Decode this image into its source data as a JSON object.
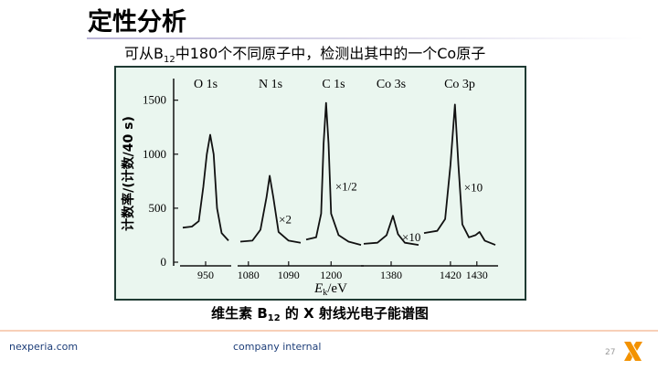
{
  "header": {
    "title": "定性分析",
    "subtitle": [
      "可从B",
      "12",
      "中180个不同原子中，检测出其中的一个Co原子"
    ]
  },
  "figure": {
    "caption": [
      "维生素 B",
      "12",
      " 的 X 射线光电子能谱图"
    ],
    "y_label": "计数率/(计数/40 s)",
    "x_label": [
      "E",
      "k",
      "/eV"
    ]
  },
  "chart_data": [
    {
      "type": "line",
      "title": "O 1s",
      "x": [
        940,
        944,
        947,
        949,
        950.5,
        952,
        953.5,
        955,
        957,
        960
      ],
      "values": [
        320,
        330,
        380,
        700,
        1000,
        1180,
        1000,
        500,
        270,
        200
      ],
      "xlim": [
        940,
        960
      ],
      "xticks": [
        950
      ],
      "ylim": [
        0,
        1700
      ],
      "yticks": [
        0,
        500,
        1000,
        1500
      ],
      "color": "#111111"
    },
    {
      "type": "line",
      "title": "N 1s",
      "annotation": "×2",
      "x": [
        1078,
        1081,
        1083,
        1084.5,
        1085.3,
        1086.2,
        1087.5,
        1090,
        1093
      ],
      "values": [
        190,
        200,
        300,
        600,
        800,
        600,
        280,
        200,
        180
      ],
      "xlim": [
        1078,
        1093
      ],
      "xticks": [
        1080,
        1090
      ],
      "ylim": [
        0,
        1700
      ],
      "color": "#111111"
    },
    {
      "type": "line",
      "title": "C 1s",
      "annotation": "×1/2",
      "x": [
        1190,
        1194,
        1196,
        1197,
        1198,
        1199,
        1200,
        1203,
        1207,
        1212
      ],
      "values": [
        210,
        230,
        450,
        1100,
        1475,
        1100,
        450,
        250,
        190,
        160
      ],
      "xlim": [
        1190,
        1212
      ],
      "xticks": [
        1200
      ],
      "ylim": [
        0,
        1700
      ],
      "color": "#111111"
    },
    {
      "type": "line",
      "title": "Co 3s",
      "annotation": "×10",
      "x": [
        1368,
        1374,
        1378,
        1380.8,
        1383,
        1386,
        1392
      ],
      "values": [
        170,
        180,
        250,
        430,
        260,
        180,
        160
      ],
      "xlim": [
        1368,
        1392
      ],
      "xticks": [
        1380
      ],
      "ylim": [
        0,
        1700
      ],
      "color": "#111111"
    },
    {
      "type": "line",
      "title": "Co 3p",
      "annotation": "×10",
      "x": [
        1410,
        1415,
        1418,
        1420,
        1421.7,
        1423,
        1424.5,
        1427,
        1429.5,
        1431,
        1433,
        1437
      ],
      "values": [
        270,
        290,
        400,
        900,
        1460,
        900,
        350,
        230,
        250,
        280,
        200,
        160
      ],
      "xlim": [
        1410,
        1437
      ],
      "xticks": [
        1420,
        1430
      ],
      "ylim": [
        0,
        1700
      ],
      "color": "#111111"
    }
  ],
  "footer": {
    "site": "nexperia.com",
    "classification": "company internal",
    "page": "27"
  }
}
